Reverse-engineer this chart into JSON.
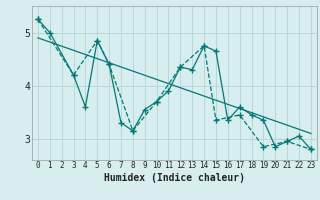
{
  "xlabel": "Humidex (Indice chaleur)",
  "bg_color": "#d8eeee",
  "grid_color": "#b8d8d8",
  "line_color": "#007878",
  "xlim": [
    -0.5,
    23.5
  ],
  "ylim": [
    2.6,
    5.5
  ],
  "yticks": [
    3,
    4,
    5
  ],
  "xticks": [
    0,
    1,
    2,
    3,
    4,
    5,
    6,
    7,
    8,
    9,
    10,
    11,
    12,
    13,
    14,
    15,
    16,
    17,
    18,
    19,
    20,
    21,
    22,
    23
  ],
  "series1_x": [
    0,
    1,
    3,
    4,
    5,
    6,
    7,
    8,
    9,
    10,
    11,
    12,
    13,
    14,
    15,
    16,
    17,
    18,
    19,
    20,
    21,
    22,
    23
  ],
  "series1_y": [
    5.25,
    5.0,
    4.2,
    3.6,
    4.85,
    4.4,
    3.3,
    3.15,
    3.55,
    3.7,
    3.9,
    4.35,
    4.3,
    4.75,
    4.65,
    3.35,
    3.6,
    3.45,
    3.35,
    2.85,
    2.95,
    3.05,
    2.8
  ],
  "series2_x": [
    0,
    3,
    5,
    6,
    8,
    10,
    12,
    14,
    15,
    17,
    19,
    21,
    23
  ],
  "series2_y": [
    5.25,
    4.2,
    4.85,
    4.4,
    3.15,
    3.7,
    4.35,
    4.75,
    3.35,
    3.45,
    2.85,
    2.95,
    2.8
  ],
  "trend_x": [
    0,
    23
  ],
  "trend_y": [
    4.9,
    3.1
  ]
}
